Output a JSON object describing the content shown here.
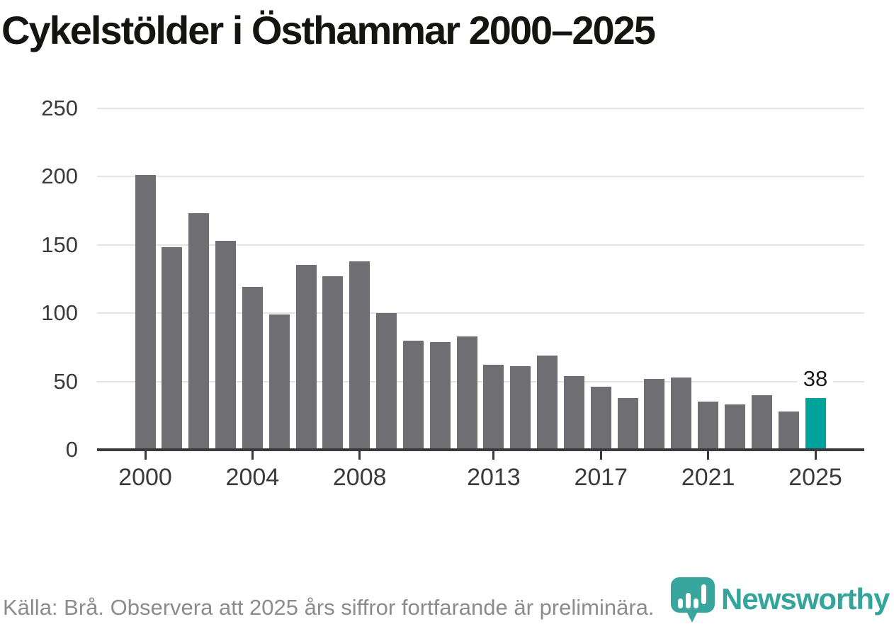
{
  "title": "Cykelstölder i Östhammar 2000–2025",
  "source_note": "Källa: Brå. Observera att 2025 års siffror fortfarande är preliminära.",
  "branding": {
    "wordmark": "Newsworthy",
    "logo_icon": "speech-bubble-bar-chart",
    "wordmark_color": "#35a49b",
    "logo_color": "#38a69d"
  },
  "colors": {
    "bar_default": "#6e6e73",
    "bar_highlight": "#00a39b",
    "gridline": "#e4e4e4",
    "axis": "#3a3a3a",
    "title_text": "#141411",
    "tick_text": "#3a3a3a",
    "source_text": "#8b8b90",
    "annotation_text": "#1a1a1a"
  },
  "chart_data": {
    "type": "bar",
    "title": "Cykelstölder i Östhammar 2000–2025",
    "xlabel": "",
    "ylabel": "",
    "x": [
      2000,
      2001,
      2002,
      2003,
      2004,
      2005,
      2006,
      2007,
      2008,
      2009,
      2010,
      2011,
      2012,
      2013,
      2014,
      2015,
      2016,
      2017,
      2018,
      2019,
      2020,
      2021,
      2022,
      2023,
      2024,
      2025
    ],
    "values": [
      201,
      148,
      173,
      153,
      119,
      99,
      135,
      127,
      138,
      100,
      80,
      79,
      83,
      62,
      61,
      69,
      54,
      46,
      38,
      52,
      53,
      35,
      33,
      40,
      28,
      38
    ],
    "highlight_index": 25,
    "annotation": {
      "index": 25,
      "label": "38"
    },
    "y_ticks": [
      0,
      50,
      100,
      150,
      200,
      250
    ],
    "x_ticks": [
      2000,
      2004,
      2008,
      2013,
      2017,
      2021,
      2025
    ],
    "ylim": [
      0,
      250
    ],
    "grid": "horizontal",
    "legend": "none"
  }
}
